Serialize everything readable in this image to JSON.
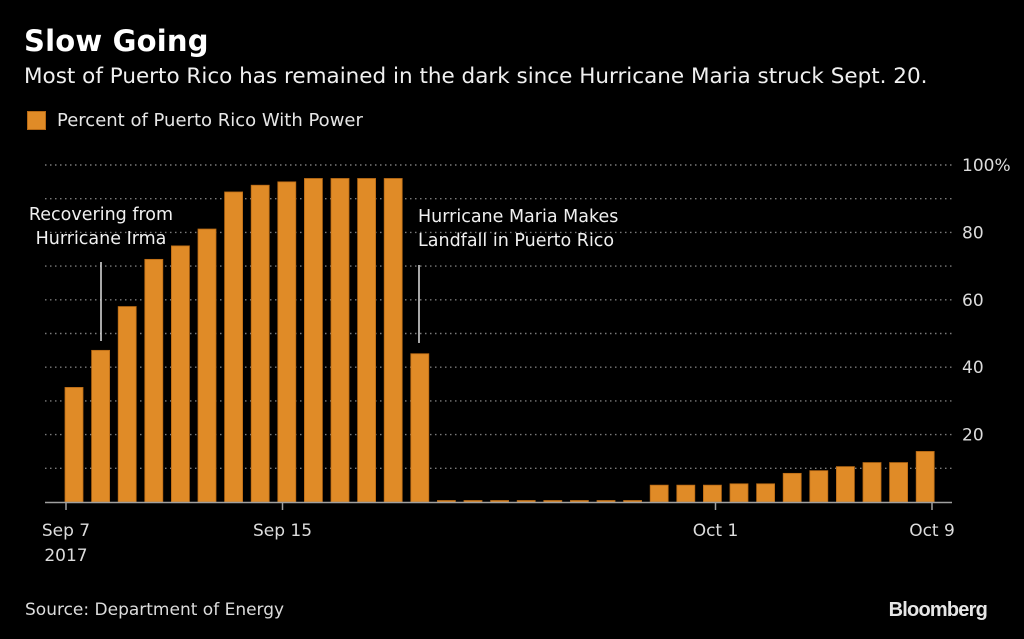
{
  "header": {
    "title": "Slow Going",
    "subtitle": "Most of Puerto Rico has remained in the dark since Hurricane Maria struck Sept. 20."
  },
  "legend": {
    "label": "Percent of Puerto Rico With Power"
  },
  "footer": {
    "source": "Source: Department of Energy",
    "brand": "Bloomberg"
  },
  "colors": {
    "bar": "#E08B27",
    "bar_border": "#b86a15",
    "background": "#000000",
    "grid": "#7a7a7a",
    "axis": "#a0a0a0",
    "annotation_line": "#e0e0e0"
  },
  "chart_data": {
    "type": "bar",
    "title": "Slow Going",
    "subtitle": "Most of Puerto Rico has remained in the dark since Hurricane Maria struck Sept. 20.",
    "series_name": "Percent of Puerto Rico With Power",
    "xlabel": "",
    "ylabel": "",
    "ylim": [
      0,
      100
    ],
    "y_axis_side": "right",
    "y_ticks": [
      {
        "value": 100,
        "label": "100%"
      },
      {
        "value": 80,
        "label": "80"
      },
      {
        "value": 60,
        "label": "60"
      },
      {
        "value": 40,
        "label": "40"
      },
      {
        "value": 20,
        "label": "20"
      }
    ],
    "gridlines": [
      10,
      20,
      30,
      40,
      50,
      60,
      70,
      80,
      90,
      100
    ],
    "grid": true,
    "legend_position": "top-left",
    "categories": [
      "Sep 7",
      "Sep 8",
      "Sep 9",
      "Sep 10",
      "Sep 11",
      "Sep 12",
      "Sep 13",
      "Sep 14",
      "Sep 15",
      "Sep 16",
      "Sep 17",
      "Sep 18",
      "Sep 19",
      "Sep 20",
      "Sep 21",
      "Sep 22",
      "Sep 23",
      "Sep 24",
      "Sep 25",
      "Sep 26",
      "Sep 27",
      "Sep 28",
      "Sep 29",
      "Sep 30",
      "Oct 1",
      "Oct 2",
      "Oct 3",
      "Oct 4",
      "Oct 5",
      "Oct 6",
      "Oct 7",
      "Oct 8",
      "Oct 9"
    ],
    "values": [
      34,
      45,
      58,
      72,
      76,
      81,
      92,
      94,
      95,
      96,
      96,
      96,
      96,
      44,
      0.3,
      0.3,
      0.3,
      0.3,
      0.3,
      0.3,
      0.3,
      0.3,
      5,
      5,
      5,
      5.4,
      5.4,
      8.5,
      9.3,
      10.5,
      11.7,
      11.7,
      15
    ],
    "x_ticks": [
      {
        "day_index": 0,
        "label": "Sep 7",
        "sublabel": "2017"
      },
      {
        "day_index": 8,
        "label": "Sep 15",
        "sublabel": ""
      },
      {
        "day_index": 24,
        "label": "Oct 1",
        "sublabel": ""
      },
      {
        "day_index": 32,
        "label": "Oct 9",
        "sublabel": ""
      }
    ],
    "annotations": [
      {
        "lines": [
          "Recovering from",
          "Hurricane Irma"
        ],
        "day_index": 1,
        "anchor": "middle"
      },
      {
        "lines": [
          "Hurricane Maria Makes",
          "Landfall in Puerto Rico"
        ],
        "day_index": 13,
        "anchor": "start"
      }
    ]
  }
}
